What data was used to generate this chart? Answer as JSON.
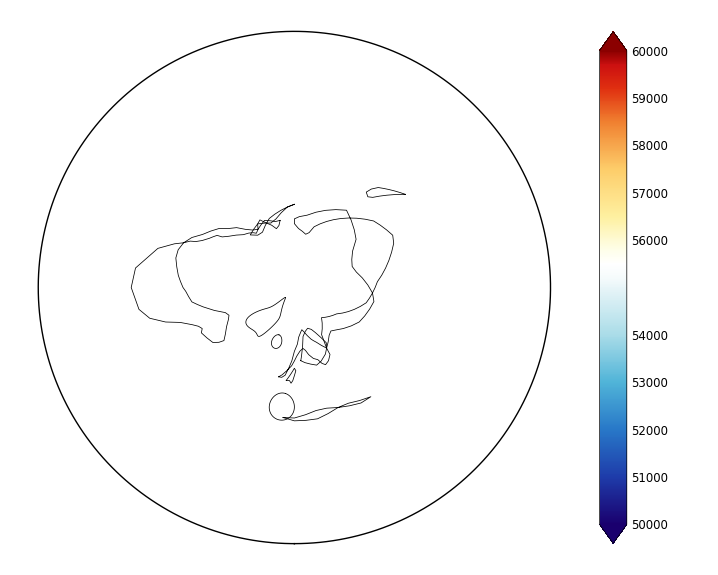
{
  "figsize": [
    7.18,
    5.75
  ],
  "dpi": 100,
  "vmin": 50000,
  "vmax": 60000,
  "colorbar_ticks": [
    60000,
    59000,
    58000,
    57000,
    56000,
    54000,
    53000,
    52000,
    51000,
    50000
  ],
  "colors_at_levels": {
    "50000": "#1a006e",
    "51000": "#1e3caa",
    "52000": "#2878c8",
    "53000": "#50b4d8",
    "54000": "#aadce8",
    "55000": "#daf0f5",
    "55500": "#f0f8fa",
    "56000": "#fdfdf0",
    "57000": "#fef0a0",
    "58000": "#fdcd6a",
    "59000": "#f08030",
    "60000": "#cc2010",
    "60500": "#8b0000"
  }
}
